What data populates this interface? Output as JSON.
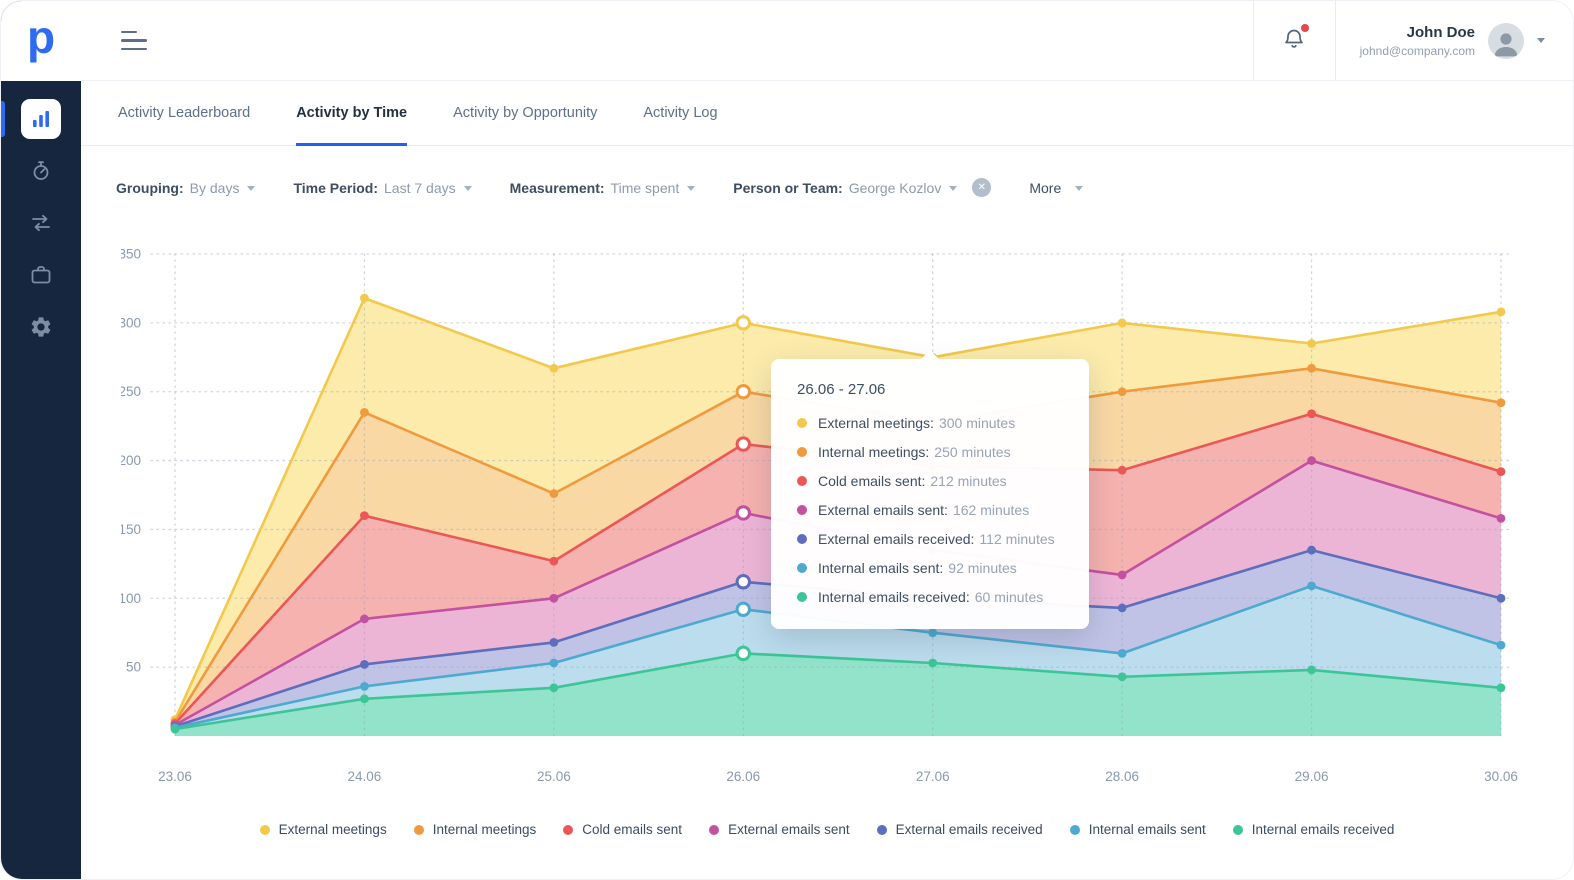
{
  "app": {
    "logo_letter": "p"
  },
  "header": {
    "user": {
      "name": "John Doe",
      "email": "johnd@company.com"
    },
    "notifications": {
      "has_unread": true
    }
  },
  "sidebar": {
    "items": [
      {
        "id": "statistics",
        "icon": "bar-chart-icon",
        "active": true
      },
      {
        "id": "activities",
        "icon": "stopwatch-icon",
        "active": false
      },
      {
        "id": "pipeline",
        "icon": "transfer-arrows-icon",
        "active": false
      },
      {
        "id": "deals",
        "icon": "briefcase-icon",
        "active": false
      },
      {
        "id": "settings",
        "icon": "gear-icon",
        "active": false
      }
    ]
  },
  "tabs": [
    {
      "label": "Activity Leaderboard",
      "active": false
    },
    {
      "label": "Activity by Time",
      "active": true
    },
    {
      "label": "Activity by Opportunity",
      "active": false
    },
    {
      "label": "Activity Log",
      "active": false
    }
  ],
  "filters": [
    {
      "label": "Grouping:",
      "value": "By days",
      "clearable": false
    },
    {
      "label": "Time Period:",
      "value": "Last 7 days",
      "clearable": false
    },
    {
      "label": "Measurement:",
      "value": "Time spent",
      "clearable": false
    },
    {
      "label": "Person or Team:",
      "value": "George Kozlov",
      "clearable": true
    }
  ],
  "more_label": "More",
  "chart_data": {
    "type": "area",
    "title": "Activity by Time",
    "x": [
      "23.06",
      "24.06",
      "25.06",
      "26.06",
      "27.06",
      "28.06",
      "29.06",
      "30.06"
    ],
    "ylim": [
      0,
      350
    ],
    "yticks": [
      50,
      100,
      150,
      200,
      250,
      300,
      350
    ],
    "grid": "dotted",
    "legend_position": "bottom",
    "selected_index": 3,
    "series": [
      {
        "name": "External meetings",
        "stroke": "#F2C94C",
        "fill": "#FCE9A4",
        "values": [
          12,
          318,
          267,
          300,
          275,
          300,
          285,
          308
        ]
      },
      {
        "name": "Internal meetings",
        "stroke": "#F09A3E",
        "fill": "#F9D6A3",
        "values": [
          10,
          235,
          176,
          250,
          228,
          250,
          267,
          242
        ]
      },
      {
        "name": "Cold emails sent",
        "stroke": "#EB5757",
        "fill": "#F5AFAF",
        "values": [
          9,
          160,
          127,
          212,
          196,
          193,
          234,
          192
        ]
      },
      {
        "name": "External emails sent",
        "stroke": "#C2519F",
        "fill": "#EBB5D8",
        "values": [
          8,
          85,
          100,
          162,
          135,
          117,
          200,
          158
        ]
      },
      {
        "name": "External emails received",
        "stroke": "#5D6EBD",
        "fill": "#BCC4E7",
        "values": [
          7,
          52,
          68,
          112,
          100,
          93,
          135,
          100
        ]
      },
      {
        "name": "Internal emails sent",
        "stroke": "#4EA9CF",
        "fill": "#BCE0EF",
        "values": [
          6,
          36,
          53,
          92,
          75,
          60,
          109,
          66
        ]
      },
      {
        "name": "Internal emails received",
        "stroke": "#3CC596",
        "fill": "#8FE3C8",
        "values": [
          5,
          27,
          35,
          60,
          53,
          43,
          48,
          35
        ]
      }
    ]
  },
  "tooltip": {
    "title": "26.06 - 27.06",
    "rows": [
      {
        "label": "External meetings:",
        "value": "300 minutes"
      },
      {
        "label": "Internal meetings:",
        "value": "250 minutes"
      },
      {
        "label": "Cold emails sent:",
        "value": "212 minutes"
      },
      {
        "label": "External emails sent:",
        "value": "162 minutes"
      },
      {
        "label": "External emails received:",
        "value": "112 minutes"
      },
      {
        "label": "Internal emails sent:",
        "value": "92 minutes"
      },
      {
        "label": "Internal emails received:",
        "value": "60 minutes"
      }
    ]
  }
}
